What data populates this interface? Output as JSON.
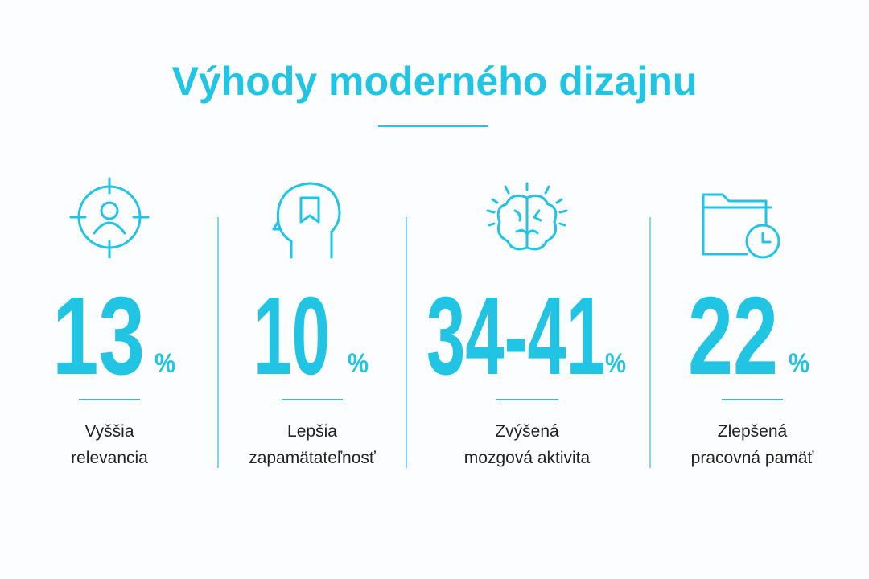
{
  "title": "Výhody moderného dizajnu",
  "stats": [
    {
      "value": "13",
      "unit": "%",
      "label_lines": [
        "Vyššia",
        "relevancia"
      ]
    },
    {
      "value": "10",
      "unit": "%",
      "label_lines": [
        "Lepšia",
        "zapamätateľnosť"
      ]
    },
    {
      "value": "34-41",
      "unit": "%",
      "label_lines": [
        "Zvýšená",
        "mozgová aktivita"
      ]
    },
    {
      "value": "22",
      "unit": "%",
      "label_lines": [
        "Zlepšená",
        "pracovná pamäť"
      ]
    }
  ]
}
